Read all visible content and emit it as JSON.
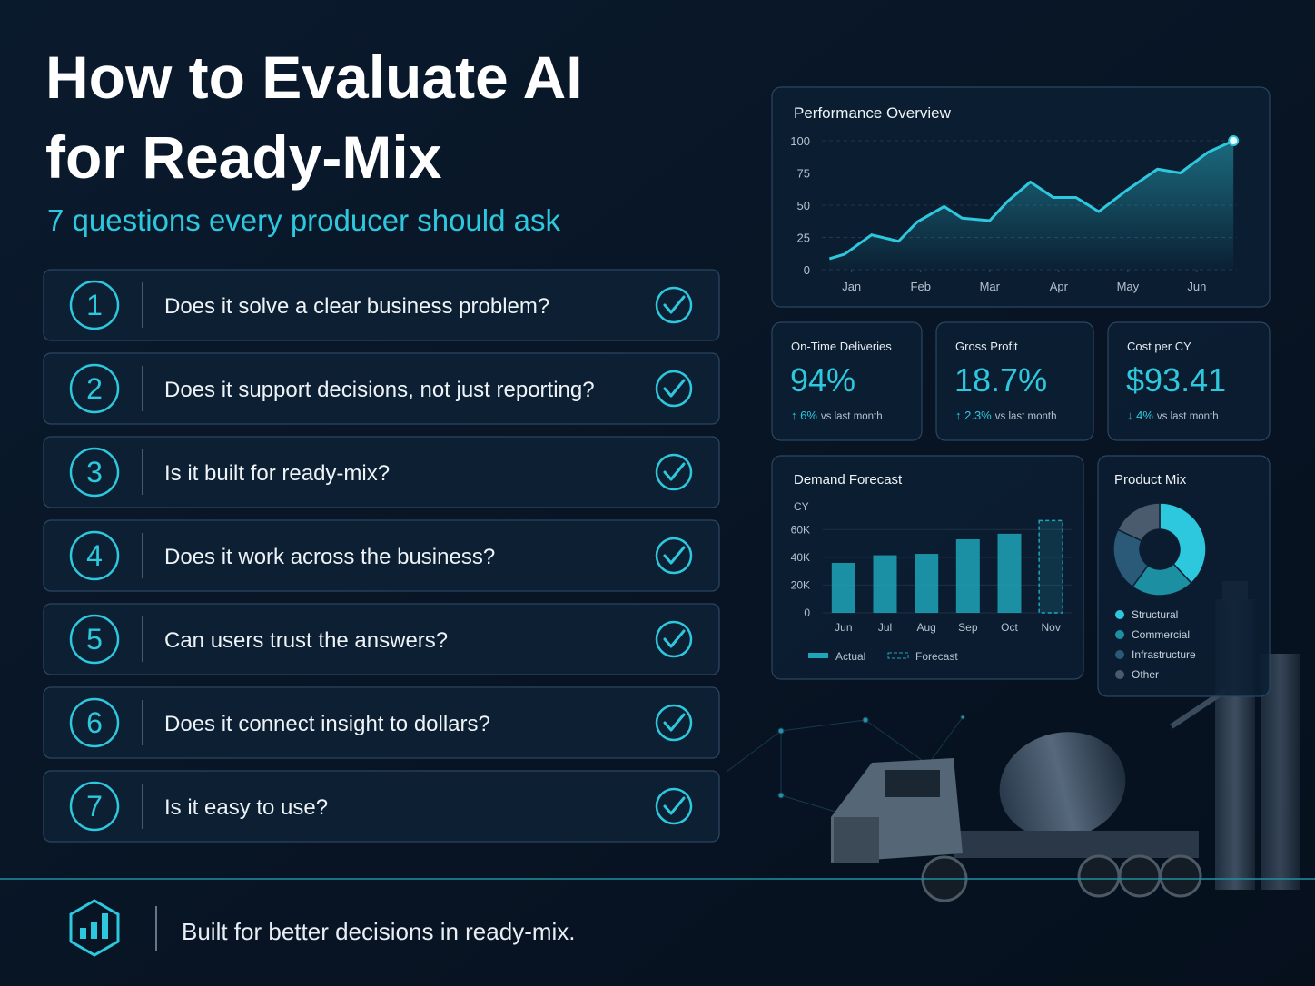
{
  "header": {
    "title_lines": [
      "How to Evaluate AI",
      "for Ready-Mix"
    ],
    "subtitle": "7 questions every producer should ask"
  },
  "questions": [
    {
      "number": "1",
      "text": "Does it solve a clear business problem?"
    },
    {
      "number": "2",
      "text": "Does it support decisions, not just reporting?"
    },
    {
      "number": "3",
      "text": "Is it built for ready-mix?"
    },
    {
      "number": "4",
      "text": "Does it work across the business?"
    },
    {
      "number": "5",
      "text": "Can users trust the answers?"
    },
    {
      "number": "6",
      "text": "Does it connect insight to dollars?"
    },
    {
      "number": "7",
      "text": "Is it easy to use?"
    }
  ],
  "footer": {
    "text": "Built for better decisions in ready-mix."
  },
  "kpis": [
    {
      "label": "On-Time Deliveries",
      "value": "94%",
      "change": "↑ 6%",
      "note": "vs last month"
    },
    {
      "label": "Gross Profit",
      "value": "18.7%",
      "change": "↑ 2.3%",
      "note": "vs last month"
    },
    {
      "label": "Cost per CY",
      "value": "$93.41",
      "change": "↓ 4%",
      "note": "vs last month"
    }
  ],
  "chart_data": [
    {
      "type": "line",
      "title": "Performance Overview",
      "color": "#2ec8de",
      "x": [
        -0.32,
        -0.1,
        0.29,
        0.68,
        0.95,
        1.34,
        1.6,
        2.0,
        2.26,
        2.59,
        2.92,
        3.25,
        3.58,
        3.97,
        4.43,
        4.76,
        5.16,
        5.53
      ],
      "values": [
        8.5,
        12,
        27,
        22,
        37,
        49,
        40,
        38,
        53,
        68,
        56,
        56,
        45,
        61,
        78,
        75,
        91,
        100
      ],
      "xlim": [
        -0.43,
        5.58
      ],
      "xticks": [
        {
          "value": 0,
          "label": "Jan"
        },
        {
          "value": 1,
          "label": "Feb"
        },
        {
          "value": 2,
          "label": "Mar"
        },
        {
          "value": 3,
          "label": "Apr"
        },
        {
          "value": 4,
          "label": "May"
        },
        {
          "value": 5,
          "label": "Jun"
        }
      ],
      "ylim": [
        0,
        100
      ],
      "yticks": [
        0,
        25,
        50,
        75,
        100
      ],
      "grid": true
    },
    {
      "type": "bar",
      "title": "Demand Forecast",
      "y_label": "CY",
      "categories": [
        "Jun",
        "Jul",
        "Aug",
        "Sep",
        "Oct",
        "Nov"
      ],
      "series": [
        {
          "name": "Actual",
          "color": "#1fa5b8",
          "values": [
            36000,
            41500,
            42500,
            53000,
            57000,
            null
          ]
        },
        {
          "name": "Forecast",
          "color": "#1fa5b8",
          "dashed": true,
          "values": [
            null,
            null,
            null,
            null,
            null,
            66500
          ]
        }
      ],
      "ylim": [
        0,
        70000
      ],
      "yticks": [
        0,
        {
          "value": 20000,
          "label": "20K"
        },
        {
          "value": 40000,
          "label": "40K"
        },
        {
          "value": 60000,
          "label": "60K"
        }
      ]
    },
    {
      "type": "pie",
      "title": "Product Mix",
      "donut": true,
      "categories": [
        "Structural",
        "Commercial",
        "Infrastructure",
        "Other"
      ],
      "values": [
        38,
        22,
        22,
        18
      ],
      "colors": [
        "#2ec8de",
        "#1d8fa3",
        "#2a5a78",
        "#4a5b6e"
      ]
    }
  ]
}
